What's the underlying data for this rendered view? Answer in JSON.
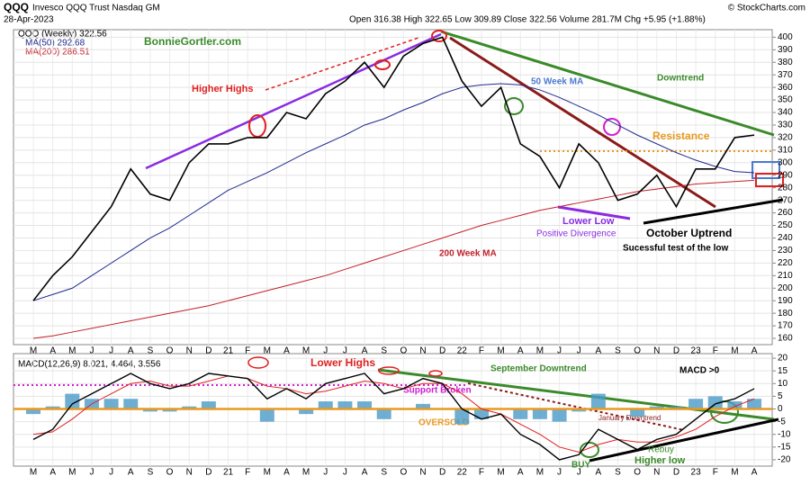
{
  "header": {
    "symbol": "QQQ",
    "name": "Invesco QQQ Trust Nasdaq GM",
    "date": "28-Apr-2023",
    "quote": "Open 316.38 High 322.65 Low 309.89 Close 322.56 Volume 281.7M Chg +5.95 (+1.88%)",
    "copyright": "© StockCharts.com"
  },
  "chart_data": [
    {
      "type": "line",
      "title": "QQQ (Weekly) 322.56",
      "categories": [
        "M",
        "A",
        "M",
        "J",
        "J",
        "A",
        "S",
        "O",
        "N",
        "D",
        "21",
        "F",
        "M",
        "A",
        "M",
        "J",
        "J",
        "A",
        "S",
        "O",
        "N",
        "D",
        "22",
        "F",
        "M",
        "A",
        "M",
        "J",
        "J",
        "A",
        "S",
        "O",
        "N",
        "D",
        "23",
        "F",
        "M",
        "A"
      ],
      "series": [
        {
          "name": "QQQ (Weekly) 322.56",
          "color": "#000000",
          "values": [
            190,
            210,
            225,
            245,
            265,
            295,
            275,
            270,
            300,
            315,
            315,
            320,
            320,
            340,
            335,
            355,
            365,
            380,
            360,
            385,
            395,
            400,
            365,
            345,
            360,
            315,
            305,
            280,
            315,
            300,
            270,
            275,
            290,
            265,
            295,
            295,
            320,
            322
          ]
        },
        {
          "name": "MA(50) 292.68",
          "color": "#1f2a8c",
          "values": [
            190,
            195,
            200,
            210,
            220,
            230,
            240,
            248,
            258,
            268,
            278,
            285,
            292,
            300,
            308,
            315,
            322,
            330,
            335,
            342,
            348,
            355,
            360,
            362,
            363,
            362,
            358,
            352,
            345,
            338,
            330,
            322,
            315,
            308,
            302,
            297,
            293,
            292
          ]
        },
        {
          "name": "MA(200) 286.51",
          "color": "#c0202a",
          "values": [
            160,
            162,
            165,
            168,
            171,
            174,
            177,
            180,
            183,
            186,
            190,
            194,
            198,
            202,
            206,
            210,
            215,
            220,
            225,
            230,
            235,
            240,
            245,
            250,
            254,
            258,
            262,
            265,
            268,
            271,
            274,
            277,
            279,
            281,
            283,
            284,
            285,
            286
          ]
        }
      ],
      "ylim": [
        155,
        406
      ],
      "yticks": [
        160,
        170,
        180,
        190,
        200,
        210,
        220,
        230,
        240,
        250,
        260,
        270,
        280,
        290,
        300,
        310,
        320,
        330,
        340,
        350,
        360,
        370,
        380,
        390,
        400
      ],
      "annotations": [
        "BonnieGortler.com",
        "Higher Highs",
        "50 Week MA",
        "Downtrend",
        "Resistance",
        "Lower Low",
        "Positive Divergence",
        "October Uptrend",
        "Sucessful test of the low",
        "200 Week MA"
      ]
    },
    {
      "type": "macd",
      "title": "MACD(12,26,9) 8.021, 4.464, 3.556",
      "categories": [
        "M",
        "A",
        "M",
        "J",
        "J",
        "A",
        "S",
        "O",
        "N",
        "D",
        "21",
        "F",
        "M",
        "A",
        "M",
        "J",
        "J",
        "A",
        "S",
        "O",
        "N",
        "D",
        "22",
        "F",
        "M",
        "A",
        "M",
        "J",
        "J",
        "A",
        "S",
        "O",
        "N",
        "D",
        "23",
        "F",
        "M",
        "A"
      ],
      "series": [
        {
          "name": "MACD",
          "color": "#000000",
          "values": [
            -12,
            -8,
            2,
            6,
            10,
            14,
            10,
            8,
            10,
            14,
            13,
            12,
            4,
            8,
            4,
            10,
            12,
            14,
            6,
            8,
            12,
            10,
            0,
            -4,
            -2,
            -10,
            -14,
            -20,
            -18,
            -8,
            -12,
            -16,
            -12,
            -10,
            -4,
            2,
            4,
            8
          ]
        },
        {
          "name": "Signal",
          "color": "#e02020",
          "values": [
            -10,
            -9,
            -4,
            2,
            6,
            10,
            11,
            9,
            9,
            11,
            13,
            12,
            9,
            8,
            6,
            7,
            9,
            11,
            10,
            8,
            10,
            10,
            6,
            0,
            -2,
            -6,
            -10,
            -15,
            -17,
            -14,
            -12,
            -13,
            -13,
            -11,
            -8,
            -3,
            1,
            4
          ]
        },
        {
          "name": "Histogram",
          "color": "#4a9ac8",
          "values": [
            -2,
            1,
            6,
            4,
            4,
            4,
            -1,
            -1,
            1,
            3,
            0,
            0,
            -5,
            0,
            -2,
            3,
            3,
            3,
            -4,
            0,
            2,
            0,
            -6,
            -4,
            0,
            -4,
            -4,
            -5,
            -1,
            6,
            0,
            -3,
            1,
            1,
            4,
            5,
            3,
            4
          ]
        }
      ],
      "ylim": [
        -22.5,
        21.8
      ],
      "yticks": [
        -20,
        -15,
        -10,
        -5,
        0,
        5,
        10,
        15,
        20
      ],
      "annotations": [
        "Lower Highs",
        "September Downtrend",
        "MACD >0",
        "Support Broken",
        "OVERSOLD",
        "January Downtrend",
        "Rebuy",
        "BUY",
        "Higher low"
      ]
    }
  ]
}
